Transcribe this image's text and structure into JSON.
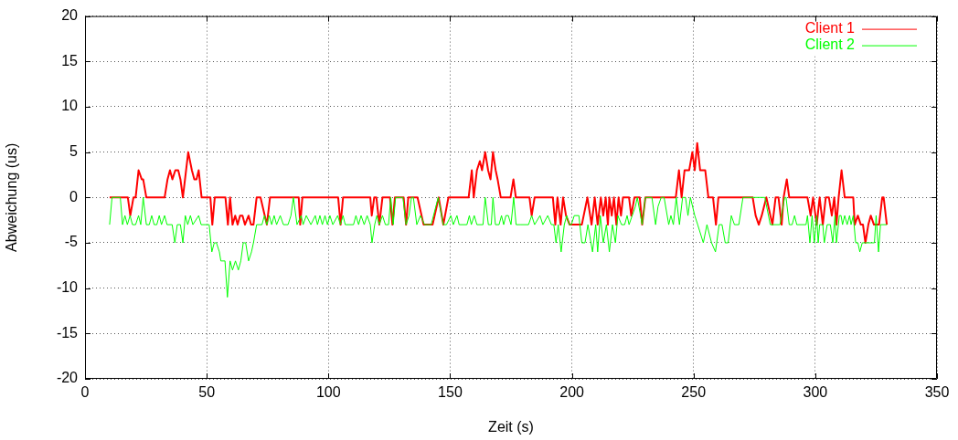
{
  "chart_data": {
    "type": "line",
    "xlabel": "Zeit (s)",
    "ylabel": "Abweichung (us)",
    "xlim": [
      0,
      350
    ],
    "xticks": [
      0,
      50,
      100,
      150,
      200,
      250,
      300,
      350
    ],
    "ylim": [
      -20,
      20
    ],
    "yticks": [
      -20,
      -15,
      -10,
      -5,
      0,
      5,
      10,
      15,
      20
    ],
    "grid": true,
    "legend": "top right",
    "marker": "none",
    "line_style": "solid",
    "series": [
      {
        "name": "Client 1",
        "color": "#ff0000",
        "x": [
          10.1,
          17.6,
          18.6,
          19.9,
          20.8,
          22.0,
          23.3,
          23.9,
          25.2,
          32.7,
          33.9,
          34.9,
          35.9,
          37.1,
          38.3,
          39.2,
          40.2,
          42.4,
          43.9,
          44.9,
          45.8,
          46.7,
          47.9,
          51.5,
          52.3,
          53.3,
          57.7,
          58.7,
          59.6,
          60.6,
          61.7,
          62.7,
          63.7,
          64.7,
          65.7,
          67.2,
          68.2,
          69.2,
          70.5,
          72.1,
          74.7,
          76.0,
          87.8,
          88.4,
          89.3,
          94.6,
          104.0,
          105.0,
          106.0,
          117.2,
          117.8,
          118.8,
          119.7,
          120.9,
          122.2,
          125.3,
          126.3,
          127.3,
          130.9,
          131.9,
          132.8,
          136.6,
          139.1,
          142.8,
          145.3,
          147.2,
          149.3,
          157.6,
          158.9,
          159.7,
          161.0,
          162.2,
          163.1,
          164.4,
          165.6,
          166.6,
          167.6,
          168.7,
          169.5,
          170.8,
          174.8,
          176.0,
          177.0,
          179.1,
          182.6,
          183.5,
          184.7,
          192.2,
          193.2,
          194.1,
          195.4,
          196.4,
          197.6,
          199.1,
          204.1,
          206.4,
          208.1,
          209.4,
          210.6,
          211.9,
          212.9,
          213.9,
          214.8,
          215.4,
          216.4,
          217.3,
          218.3,
          219.2,
          220.2,
          221.0,
          223.5,
          224.4,
          225.7,
          227.9,
          228.9,
          230.2,
          242.7,
          244.0,
          245.1,
          246.3,
          248.2,
          249.5,
          250.5,
          251.5,
          252.7,
          254.8,
          256.1,
          258.0,
          259.2,
          260.2,
          264.2,
          265.5,
          274.3,
          275.5,
          276.8,
          278.0,
          279.9,
          282.4,
          283.7,
          284.9,
          286.2,
          287.0,
          288.3,
          289.3,
          296.8,
          298.1,
          299.1,
          300.6,
          301.8,
          303.1,
          304.3,
          305.6,
          306.8,
          307.8,
          308.7,
          309.6,
          310.8,
          312.1,
          315.6,
          316.2,
          317.5,
          318.7,
          319.6,
          320.6,
          321.8,
          322.8,
          324.1,
          326.2,
          327.5,
          328.1,
          329.4
        ],
        "values": [
          0,
          0,
          -2,
          0,
          0,
          3,
          2,
          2,
          0,
          0,
          2,
          3,
          2,
          3,
          3,
          2,
          0,
          5,
          3,
          2,
          2,
          3,
          0,
          0,
          -3,
          0,
          0,
          -3,
          0,
          -3,
          -2,
          -3,
          -2,
          -2,
          -3,
          -2,
          -3,
          -3,
          0,
          0,
          -3,
          0,
          0,
          -3,
          0,
          0,
          0,
          -3,
          0,
          0,
          -2,
          0,
          0,
          -3,
          0,
          0,
          -3,
          0,
          0,
          -3,
          0,
          0,
          -3,
          -3,
          0,
          -3,
          0,
          0,
          3,
          0,
          3,
          4,
          3,
          5,
          3,
          2,
          5,
          3,
          2,
          0,
          0,
          2,
          0,
          0,
          0,
          -2,
          0,
          0,
          -3,
          0,
          -3,
          0,
          -2,
          -3,
          -3,
          0,
          -3,
          0,
          -3,
          0,
          -2,
          0,
          -3,
          0,
          -2,
          0,
          -3,
          0,
          -2,
          0,
          0,
          -2,
          0,
          0,
          -3,
          0,
          0,
          3,
          0,
          3,
          3,
          5,
          3,
          6,
          3,
          3,
          0,
          0,
          -3,
          0,
          0,
          0,
          0,
          -2,
          -3,
          -2,
          0,
          -3,
          0,
          0,
          -3,
          0,
          2,
          0,
          0,
          -2,
          0,
          -3,
          0,
          -3,
          0,
          0,
          -2,
          0,
          -3,
          0,
          3,
          0,
          0,
          -3,
          -2,
          -3,
          -3,
          -5,
          -3,
          -2,
          -3,
          -3,
          0,
          0,
          -3
        ]
      },
      {
        "name": "Client 2",
        "color": "#00ff00",
        "x": [
          10.1,
          11.1,
          14.5,
          15.4,
          16.4,
          17.4,
          18.5,
          19.5,
          20.8,
          22.0,
          22.9,
          23.9,
          25.2,
          26.4,
          27.4,
          28.4,
          29.5,
          30.5,
          31.4,
          32.7,
          33.7,
          35.8,
          36.9,
          37.9,
          39.2,
          40.2,
          41.2,
          42.2,
          43.3,
          44.3,
          46.7,
          47.7,
          51.0,
          52.1,
          53.1,
          54.0,
          55.2,
          55.8,
          57.5,
          58.5,
          59.6,
          60.6,
          61.8,
          63.0,
          64.0,
          65.0,
          66.0,
          67.2,
          68.4,
          69.2,
          70.5,
          72.7,
          73.7,
          74.7,
          75.7,
          76.7,
          77.7,
          78.7,
          80.2,
          81.5,
          83.4,
          84.6,
          85.6,
          87.1,
          88.8,
          89.6,
          90.9,
          92.8,
          94.6,
          95.5,
          96.5,
          97.5,
          98.6,
          99.6,
          100.6,
          101.8,
          103.8,
          104.9,
          106.0,
          106.9,
          110.3,
          111.3,
          112.4,
          113.4,
          114.7,
          115.9,
          117.2,
          117.9,
          119.0,
          119.9,
          120.9,
          122.2,
          123.4,
          124.7,
          125.6,
          126.6,
          127.6,
          130.6,
          131.9,
          133.1,
          134.1,
          134.9,
          136.3,
          137.8,
          139.5,
          142.2,
          145.1,
          147.2,
          148.5,
          150.3,
          151.3,
          152.8,
          153.7,
          156.9,
          157.9,
          158.7,
          159.9,
          161.0,
          163.5,
          164.4,
          165.7,
          166.9,
          167.6,
          168.6,
          170.1,
          171.1,
          172.0,
          172.9,
          173.9,
          175.0,
          176.1,
          177.1,
          179.1,
          182.2,
          183.5,
          184.7,
          186.9,
          188.1,
          190.1,
          191.6,
          192.6,
          193.5,
          194.4,
          195.6,
          196.9,
          197.9,
          198.9,
          199.8,
          201.0,
          202.9,
          204.1,
          205.4,
          206.6,
          208.5,
          209.8,
          210.6,
          211.7,
          212.9,
          214.2,
          215.4,
          216.7,
          217.9,
          218.9,
          220.4,
          221.7,
          222.7,
          223.5,
          224.8,
          226.1,
          226.9,
          228.9,
          230.2,
          232.9,
          234.4,
          235.4,
          236.7,
          237.9,
          239.8,
          240.7,
          241.7,
          242.9,
          244.2,
          245.5,
          246.7,
          247.7,
          248.7,
          250.5,
          251.7,
          254.0,
          255.5,
          257.4,
          259.0,
          260.5,
          261.7,
          263.0,
          264.2,
          265.5,
          266.8,
          268.6,
          270.3,
          279.3,
          281.5,
          285.5,
          287.4,
          288.0,
          289.3,
          290.5,
          291.5,
          292.4,
          296.2,
          296.8,
          297.8,
          298.7,
          299.6,
          300.6,
          301.2,
          301.8,
          303.1,
          303.7,
          304.9,
          306.2,
          307.2,
          308.1,
          308.7,
          309.9,
          310.6,
          311.2,
          312.1,
          313.1,
          314.1,
          314.7,
          315.6,
          316.6,
          317.5,
          318.3,
          319.3,
          324.3,
          325.0,
          326.0,
          326.8,
          329.4
        ],
        "values": [
          -3,
          0,
          0,
          -3,
          -2,
          -3,
          -2,
          -3,
          -3,
          -2,
          -3,
          0,
          -3,
          -3,
          -2,
          -3,
          -3,
          -2,
          -3,
          -2,
          -3,
          -3,
          -5,
          -3,
          -3,
          -5,
          -2,
          -3,
          -2,
          -3,
          -2,
          -3,
          -3,
          -6,
          -5,
          -5,
          -6,
          -7,
          -7,
          -11,
          -7,
          -8,
          -7,
          -8,
          -7,
          -5,
          -5,
          -7,
          -6,
          -5,
          -3,
          -3,
          -2,
          -3,
          -2,
          -3,
          -2,
          -3,
          -2,
          -3,
          -3,
          -2,
          0,
          -3,
          -2,
          -3,
          -2,
          -3,
          -2,
          -3,
          -2,
          -3,
          -2,
          -3,
          -2,
          -3,
          -2,
          -3,
          -2,
          -3,
          -3,
          -2,
          -3,
          -2,
          -3,
          -2,
          -3,
          -5,
          -3,
          -2,
          -3,
          -2,
          -3,
          -3,
          0,
          -3,
          0,
          0,
          -3,
          -2,
          0,
          0,
          -3,
          -2,
          -3,
          -3,
          0,
          -3,
          -3,
          -2,
          -3,
          -2,
          -3,
          -3,
          -2,
          -3,
          -2,
          -3,
          -3,
          0,
          -3,
          -3,
          0,
          -3,
          -3,
          -2,
          -3,
          -2,
          -2,
          -3,
          0,
          -3,
          -3,
          -3,
          -2,
          -3,
          -2,
          -3,
          -2,
          -3,
          -3,
          -5,
          -3,
          -6,
          -3,
          -2,
          -3,
          -3,
          -2,
          -2,
          -5,
          -5,
          -3,
          -6,
          -3,
          -6,
          -2,
          -5,
          -3,
          -6,
          -3,
          -5,
          -2,
          -3,
          -3,
          -2,
          -3,
          -2,
          -1,
          0,
          -3,
          0,
          0,
          -3,
          -1,
          0,
          0,
          -3,
          -2,
          -3,
          0,
          -3,
          0,
          0,
          -2,
          0,
          -2,
          -3,
          -5,
          -3,
          -5,
          -6,
          -3,
          -3,
          -5,
          -5,
          -2,
          -3,
          -3,
          0,
          0,
          -3,
          -3,
          0,
          0,
          -3,
          -3,
          -2,
          -3,
          -3,
          -2,
          -5,
          -2,
          -5,
          -2,
          -5,
          -3,
          -3,
          -5,
          -3,
          -3,
          -5,
          -2,
          -5,
          -2,
          -2,
          -3,
          -2,
          -3,
          -2,
          -3,
          -2,
          -5,
          -5,
          -6,
          -5,
          -5,
          -2,
          -6,
          -3,
          -3
        ]
      }
    ]
  }
}
